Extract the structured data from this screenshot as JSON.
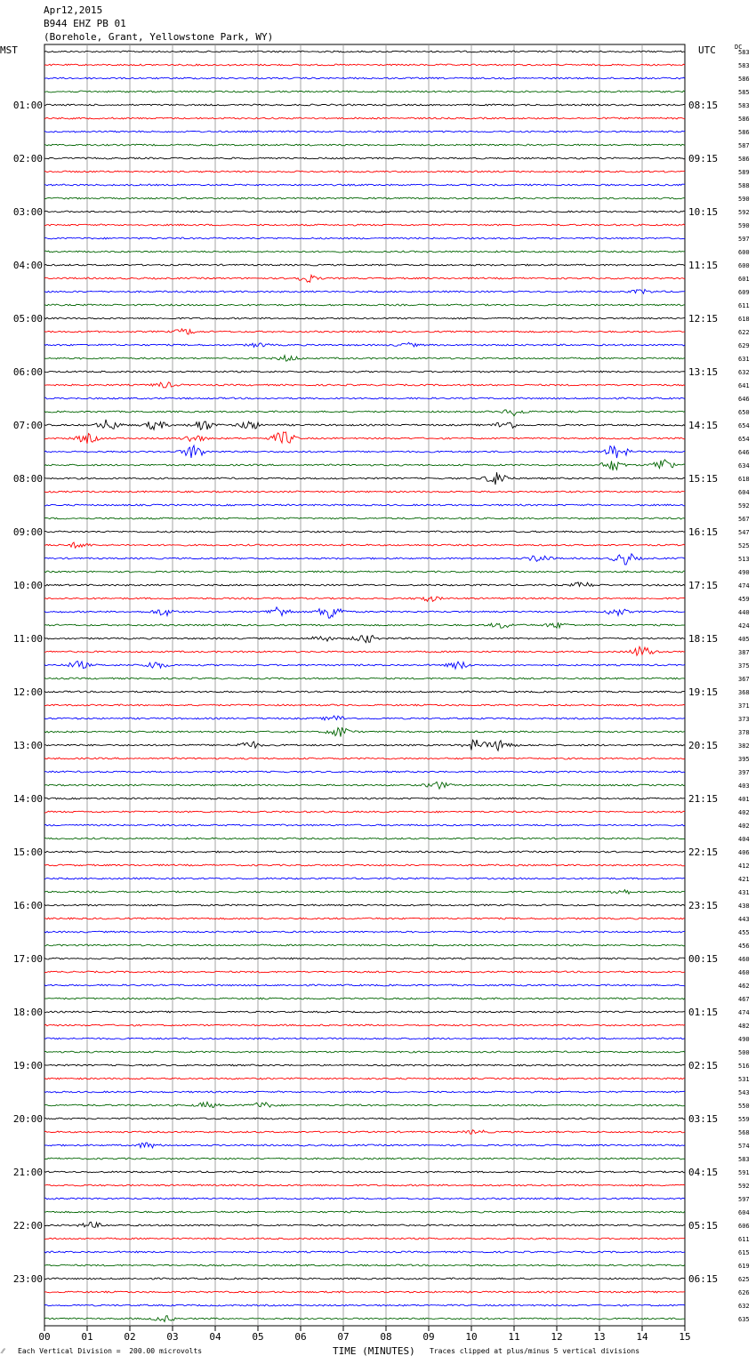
{
  "header": {
    "date": "Apr12,2015",
    "station": "B944 EHZ PB 01",
    "location": "(Borehole, Grant, Yellowstone Park, WY)"
  },
  "chart_data": {
    "type": "line",
    "title": "",
    "left_axis_label": "MST",
    "right_axis_label": "UTC",
    "dc_label": "DC",
    "xlabel": "TIME (MINUTES)",
    "xlim": [
      0,
      15
    ],
    "x_ticks": [
      "00",
      "01",
      "02",
      "03",
      "04",
      "05",
      "06",
      "07",
      "08",
      "09",
      "10",
      "11",
      "12",
      "13",
      "14",
      "15"
    ],
    "left_hour_labels": [
      "01:00",
      "02:00",
      "03:00",
      "04:00",
      "05:00",
      "06:00",
      "07:00",
      "08:00",
      "09:00",
      "10:00",
      "11:00",
      "12:00",
      "13:00",
      "14:00",
      "15:00",
      "16:00",
      "17:00",
      "18:00",
      "19:00",
      "20:00",
      "21:00",
      "22:00",
      "23:00"
    ],
    "right_hour_labels": [
      "08:15",
      "09:15",
      "10:15",
      "11:15",
      "12:15",
      "13:15",
      "14:15",
      "15:15",
      "16:15",
      "17:15",
      "18:15",
      "19:15",
      "20:15",
      "21:15",
      "22:15",
      "23:15",
      "00:15",
      "01:15",
      "02:15",
      "03:15",
      "04:15",
      "05:15",
      "06:15"
    ],
    "dc_offsets": [
      583,
      583,
      586,
      585,
      583,
      586,
      586,
      587,
      586,
      589,
      588,
      590,
      592,
      590,
      597,
      600,
      600,
      601,
      609,
      611,
      618,
      622,
      629,
      631,
      632,
      641,
      646,
      650,
      654,
      654,
      646,
      634,
      618,
      604,
      592,
      567,
      547,
      525,
      513,
      490,
      474,
      459,
      440,
      424,
      405,
      387,
      375,
      367,
      368,
      371,
      373,
      378,
      382,
      395,
      397,
      403,
      401,
      402,
      402,
      404,
      406,
      412,
      421,
      431,
      438,
      443,
      455,
      456,
      460,
      460,
      462,
      467,
      474,
      482,
      490,
      500,
      516,
      531,
      543,
      550,
      559,
      568,
      574,
      583,
      591,
      592,
      597,
      604,
      606,
      611,
      615,
      619,
      625,
      626,
      632,
      635
    ],
    "trace_colors": [
      "#000000",
      "#ff0000",
      "#0000ff",
      "#006400"
    ],
    "grid": true,
    "scale_note": "Each Vertical Division =  200.00 microvolts",
    "clip_note": "Traces clipped at plus/minus 5 vertical divisions",
    "events": [
      {
        "trace": 17,
        "minute": 6.15,
        "amp": 4
      },
      {
        "trace": 18,
        "minute": 14.0,
        "amp": 2
      },
      {
        "trace": 21,
        "minute": 3.3,
        "amp": 3
      },
      {
        "trace": 22,
        "minute": 5.0,
        "amp": 2
      },
      {
        "trace": 22,
        "minute": 8.5,
        "amp": 2
      },
      {
        "trace": 23,
        "minute": 5.7,
        "amp": 3
      },
      {
        "trace": 25,
        "minute": 2.8,
        "amp": 3
      },
      {
        "trace": 27,
        "minute": 11.0,
        "amp": 4
      },
      {
        "trace": 28,
        "minute": 1.5,
        "amp": 6
      },
      {
        "trace": 28,
        "minute": 2.6,
        "amp": 5
      },
      {
        "trace": 28,
        "minute": 3.7,
        "amp": 6
      },
      {
        "trace": 28,
        "minute": 4.8,
        "amp": 5
      },
      {
        "trace": 28,
        "minute": 10.8,
        "amp": 5
      },
      {
        "trace": 29,
        "minute": 1.0,
        "amp": 5
      },
      {
        "trace": 29,
        "minute": 3.5,
        "amp": 4
      },
      {
        "trace": 29,
        "minute": 5.6,
        "amp": 8
      },
      {
        "trace": 30,
        "minute": 3.5,
        "amp": 8
      },
      {
        "trace": 30,
        "minute": 13.4,
        "amp": 9
      },
      {
        "trace": 31,
        "minute": 13.3,
        "amp": 6
      },
      {
        "trace": 31,
        "minute": 14.5,
        "amp": 7
      },
      {
        "trace": 32,
        "minute": 10.6,
        "amp": 9
      },
      {
        "trace": 37,
        "minute": 0.8,
        "amp": 3
      },
      {
        "trace": 38,
        "minute": 11.6,
        "amp": 4
      },
      {
        "trace": 38,
        "minute": 13.6,
        "amp": 7
      },
      {
        "trace": 40,
        "minute": 12.6,
        "amp": 3
      },
      {
        "trace": 41,
        "minute": 9.0,
        "amp": 3
      },
      {
        "trace": 42,
        "minute": 2.8,
        "amp": 4
      },
      {
        "trace": 42,
        "minute": 5.5,
        "amp": 6
      },
      {
        "trace": 42,
        "minute": 6.7,
        "amp": 11
      },
      {
        "trace": 42,
        "minute": 13.4,
        "amp": 4
      },
      {
        "trace": 43,
        "minute": 10.7,
        "amp": 3
      },
      {
        "trace": 43,
        "minute": 12.0,
        "amp": 3
      },
      {
        "trace": 44,
        "minute": 6.5,
        "amp": 3
      },
      {
        "trace": 44,
        "minute": 7.5,
        "amp": 5
      },
      {
        "trace": 45,
        "minute": 14.0,
        "amp": 6
      },
      {
        "trace": 46,
        "minute": 0.8,
        "amp": 4
      },
      {
        "trace": 46,
        "minute": 2.6,
        "amp": 4
      },
      {
        "trace": 46,
        "minute": 9.7,
        "amp": 4
      },
      {
        "trace": 50,
        "minute": 6.8,
        "amp": 3
      },
      {
        "trace": 51,
        "minute": 6.9,
        "amp": 6
      },
      {
        "trace": 52,
        "minute": 4.8,
        "amp": 4
      },
      {
        "trace": 52,
        "minute": 10.1,
        "amp": 6
      },
      {
        "trace": 52,
        "minute": 10.7,
        "amp": 6
      },
      {
        "trace": 55,
        "minute": 9.2,
        "amp": 4
      },
      {
        "trace": 63,
        "minute": 13.5,
        "amp": 3
      },
      {
        "trace": 79,
        "minute": 3.8,
        "amp": 3
      },
      {
        "trace": 79,
        "minute": 5.1,
        "amp": 3
      },
      {
        "trace": 81,
        "minute": 10.1,
        "amp": 2
      },
      {
        "trace": 82,
        "minute": 2.4,
        "amp": 3
      },
      {
        "trace": 88,
        "minute": 1.1,
        "amp": 3
      },
      {
        "trace": 95,
        "minute": 2.8,
        "amp": 3
      }
    ]
  }
}
